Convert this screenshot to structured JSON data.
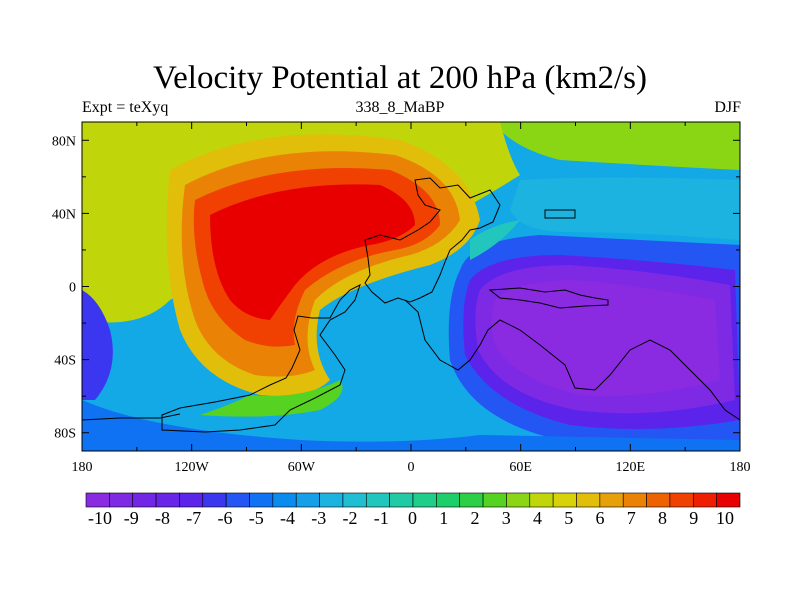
{
  "title": "Velocity Potential at 200 hPa (km2/s)",
  "subtitle_left": "Expt = teXyq",
  "subtitle_center": "338_8_MaBP",
  "subtitle_right": "DJF",
  "map": {
    "projection": "cylindrical-equidistant",
    "lon_range": [
      -180,
      180
    ],
    "lat_range": [
      -90,
      90
    ],
    "lat_ticks": [
      {
        "value": 80,
        "label": "80N"
      },
      {
        "value": 40,
        "label": "40N"
      },
      {
        "value": 0,
        "label": "0"
      },
      {
        "value": -40,
        "label": "40S"
      },
      {
        "value": -80,
        "label": "80S"
      }
    ],
    "lon_ticks": [
      {
        "value": -180,
        "label": "180"
      },
      {
        "value": -120,
        "label": "120W"
      },
      {
        "value": -60,
        "label": "60W"
      },
      {
        "value": 0,
        "label": "0"
      },
      {
        "value": 60,
        "label": "60E"
      },
      {
        "value": 120,
        "label": "120E"
      },
      {
        "value": 180,
        "label": "180"
      }
    ],
    "field_centers": [
      {
        "name": "velocity-potential-maximum",
        "lon": -95,
        "lat": 10,
        "value": 10
      },
      {
        "name": "velocity-potential-minimum",
        "lon": 105,
        "lat": -25,
        "value": -10
      }
    ]
  },
  "colorbar": {
    "labels": [
      "-10",
      "-9",
      "-8",
      "-7",
      "-6",
      "-5",
      "-4",
      "-3",
      "-2",
      "-1",
      "0",
      "1",
      "2",
      "3",
      "4",
      "5",
      "6",
      "7",
      "8",
      "9",
      "10"
    ],
    "colors": [
      "#8a2be2",
      "#7e29e4",
      "#7327e6",
      "#6825e8",
      "#5c23eb",
      "#3b37f0",
      "#2356f2",
      "#0f72f2",
      "#0a8bee",
      "#13a0e8",
      "#1cb3e0",
      "#20bed3",
      "#22c6bd",
      "#20caa4",
      "#1fce8b",
      "#1ccf6a",
      "#2ccf45",
      "#55d222",
      "#8ad615",
      "#c0d60a",
      "#d8d20a",
      "#e0be09",
      "#e6a008",
      "#ea8206",
      "#ee6204",
      "#f04002",
      "#f01e00",
      "#e80000"
    ]
  }
}
